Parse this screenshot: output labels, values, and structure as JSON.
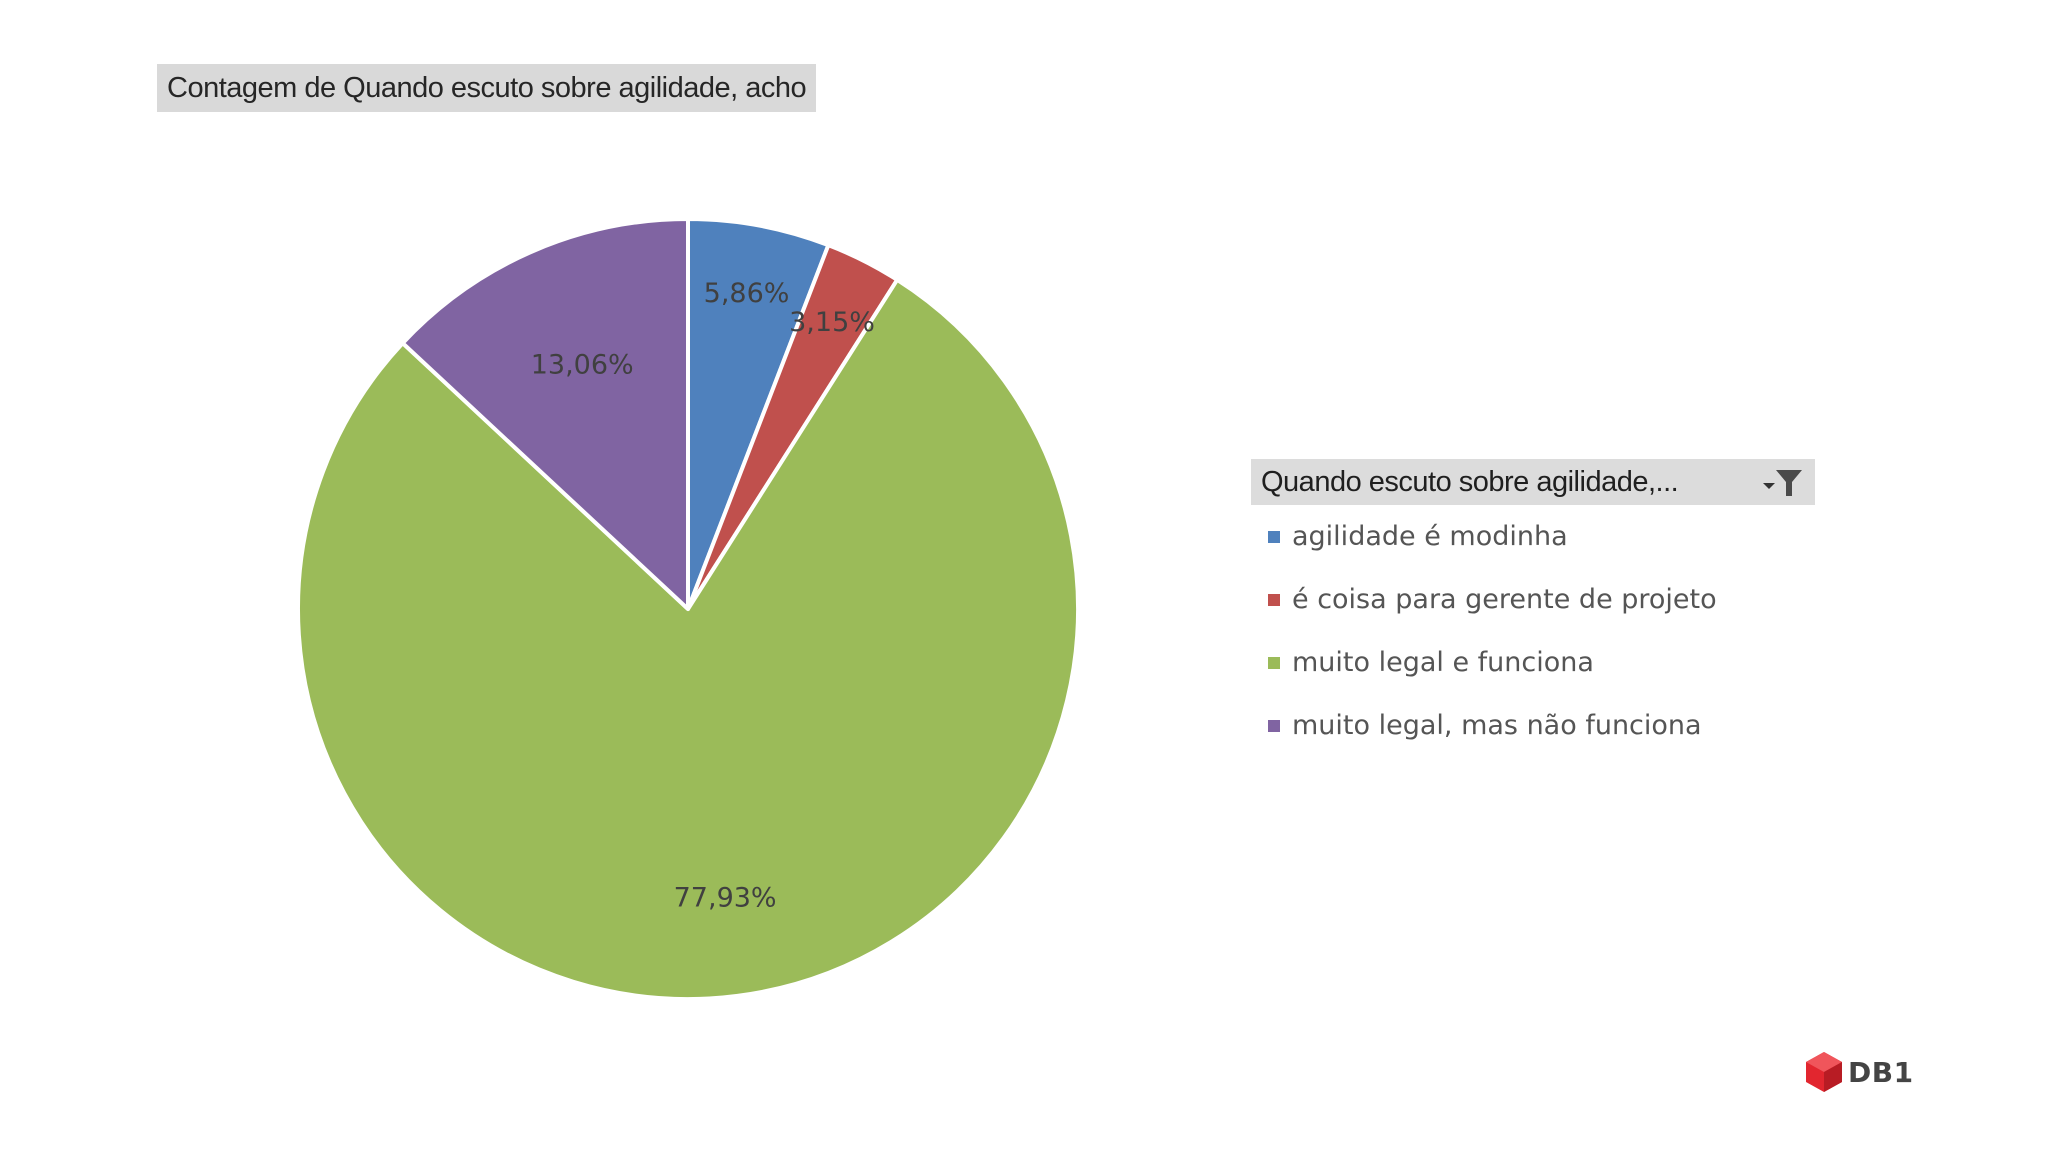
{
  "chart_data": {
    "type": "pie",
    "title": "Contagem de Quando escuto sobre agilidade, acho",
    "legend_title": "Quando escuto sobre agilidade,...",
    "legend_position": "right",
    "categories": [
      "agilidade é modinha",
      "é coisa para gerente de projeto",
      "muito legal e funciona",
      "muito legal, mas não funciona"
    ],
    "values": [
      5.86,
      3.15,
      77.93,
      13.06
    ],
    "data_labels": [
      "5,86%",
      "3,15%",
      "77,93%",
      "13,06%"
    ],
    "colors": [
      "#4f81bd",
      "#c0504d",
      "#9bbb59",
      "#8064a2"
    ],
    "label_colors": [
      "#404040",
      "#404040",
      "#404040",
      "#404040"
    ]
  },
  "legend": {
    "filter_icon": "filter-dropdown-icon"
  },
  "logo": {
    "text": "DB1",
    "icon_color": "#e2262f"
  }
}
